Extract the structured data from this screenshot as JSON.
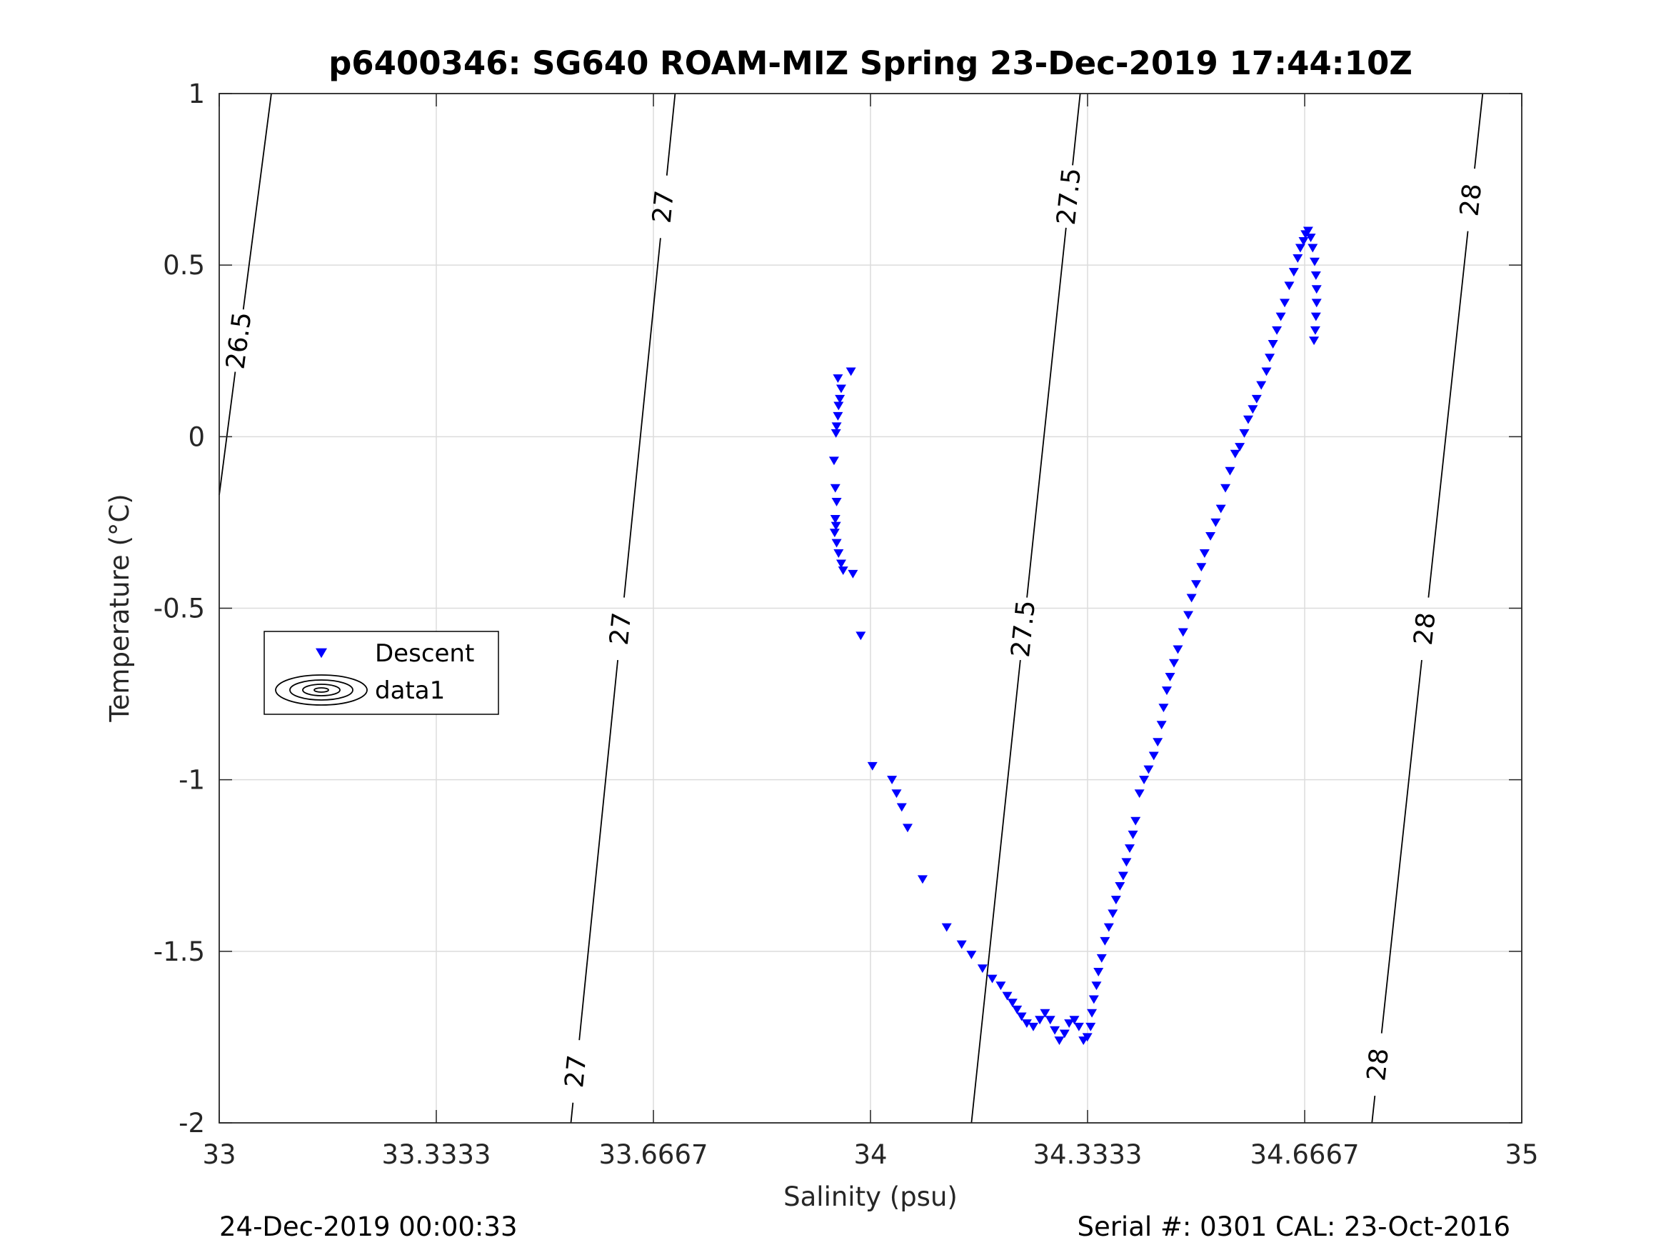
{
  "chart_data": {
    "type": "scatter",
    "title": "p6400346: SG640 ROAM-MIZ Spring 23-Dec-2019 17:44:10Z",
    "xlabel": "Salinity (psu)",
    "ylabel": "Temperature (°C)",
    "xlim": [
      33,
      35
    ],
    "ylim": [
      -2,
      1
    ],
    "x_ticks": [
      "33",
      "33.3333",
      "33.6667",
      "34",
      "34.3333",
      "34.6667",
      "35"
    ],
    "y_ticks": [
      "1",
      "0.5",
      "0",
      "-0.5",
      "-1",
      "-1.5",
      "-2"
    ],
    "grid": true,
    "legend_position": "middle-left",
    "colors": {
      "descent": "#0000ff",
      "contour": "#000000",
      "grid": "#dcdcdc"
    },
    "series": [
      {
        "name": "Descent",
        "marker": "down-triangle",
        "points": [
          [
            33.97,
            0.19
          ],
          [
            33.95,
            0.17
          ],
          [
            33.955,
            0.14
          ],
          [
            33.953,
            0.11
          ],
          [
            33.951,
            0.09
          ],
          [
            33.95,
            0.06
          ],
          [
            33.948,
            0.03
          ],
          [
            33.947,
            0.01
          ],
          [
            33.944,
            -0.07
          ],
          [
            33.946,
            -0.15
          ],
          [
            33.948,
            -0.19
          ],
          [
            33.946,
            -0.24
          ],
          [
            33.947,
            -0.26
          ],
          [
            33.945,
            -0.28
          ],
          [
            33.948,
            -0.31
          ],
          [
            33.951,
            -0.34
          ],
          [
            33.955,
            -0.37
          ],
          [
            33.958,
            -0.39
          ],
          [
            33.973,
            -0.4
          ],
          [
            33.985,
            -0.58
          ],
          [
            34.003,
            -0.96
          ],
          [
            34.033,
            -1.0
          ],
          [
            34.04,
            -1.04
          ],
          [
            34.048,
            -1.08
          ],
          [
            34.057,
            -1.14
          ],
          [
            34.08,
            -1.29
          ],
          [
            34.117,
            -1.43
          ],
          [
            34.14,
            -1.48
          ],
          [
            34.155,
            -1.51
          ],
          [
            34.172,
            -1.55
          ],
          [
            34.187,
            -1.58
          ],
          [
            34.2,
            -1.6
          ],
          [
            34.21,
            -1.63
          ],
          [
            34.218,
            -1.65
          ],
          [
            34.225,
            -1.67
          ],
          [
            34.232,
            -1.69
          ],
          [
            34.24,
            -1.71
          ],
          [
            34.25,
            -1.72
          ],
          [
            34.26,
            -1.7
          ],
          [
            34.268,
            -1.68
          ],
          [
            34.276,
            -1.7
          ],
          [
            34.283,
            -1.73
          ],
          [
            34.29,
            -1.76
          ],
          [
            34.298,
            -1.74
          ],
          [
            34.305,
            -1.71
          ],
          [
            34.313,
            -1.7
          ],
          [
            34.32,
            -1.72
          ],
          [
            34.327,
            -1.76
          ],
          [
            34.333,
            -1.75
          ],
          [
            34.338,
            -1.72
          ],
          [
            34.34,
            -1.68
          ],
          [
            34.343,
            -1.64
          ],
          [
            34.347,
            -1.6
          ],
          [
            34.35,
            -1.56
          ],
          [
            34.355,
            -1.52
          ],
          [
            34.36,
            -1.47
          ],
          [
            34.366,
            -1.43
          ],
          [
            34.372,
            -1.39
          ],
          [
            34.377,
            -1.35
          ],
          [
            34.383,
            -1.31
          ],
          [
            34.388,
            -1.28
          ],
          [
            34.393,
            -1.24
          ],
          [
            34.398,
            -1.2
          ],
          [
            34.403,
            -1.16
          ],
          [
            34.407,
            -1.12
          ],
          [
            34.413,
            -1.04
          ],
          [
            34.42,
            -1.0
          ],
          [
            34.427,
            -0.97
          ],
          [
            34.435,
            -0.93
          ],
          [
            34.441,
            -0.89
          ],
          [
            34.447,
            -0.84
          ],
          [
            34.45,
            -0.79
          ],
          [
            34.455,
            -0.74
          ],
          [
            34.46,
            -0.7
          ],
          [
            34.466,
            -0.66
          ],
          [
            34.472,
            -0.62
          ],
          [
            34.48,
            -0.57
          ],
          [
            34.488,
            -0.52
          ],
          [
            34.493,
            -0.47
          ],
          [
            34.5,
            -0.43
          ],
          [
            34.508,
            -0.38
          ],
          [
            34.513,
            -0.34
          ],
          [
            34.522,
            -0.29
          ],
          [
            34.53,
            -0.25
          ],
          [
            34.538,
            -0.21
          ],
          [
            34.545,
            -0.15
          ],
          [
            34.552,
            -0.1
          ],
          [
            34.56,
            -0.05
          ],
          [
            34.567,
            -0.03
          ],
          [
            34.574,
            0.01
          ],
          [
            34.58,
            0.05
          ],
          [
            34.587,
            0.08
          ],
          [
            34.593,
            0.11
          ],
          [
            34.6,
            0.15
          ],
          [
            34.608,
            0.19
          ],
          [
            34.613,
            0.23
          ],
          [
            34.618,
            0.27
          ],
          [
            34.624,
            0.31
          ],
          [
            34.63,
            0.35
          ],
          [
            34.636,
            0.39
          ],
          [
            34.643,
            0.44
          ],
          [
            34.65,
            0.48
          ],
          [
            34.656,
            0.52
          ],
          [
            34.66,
            0.55
          ],
          [
            34.665,
            0.57
          ],
          [
            34.668,
            0.59
          ],
          [
            34.672,
            0.6
          ],
          [
            34.676,
            0.58
          ],
          [
            34.679,
            0.55
          ],
          [
            34.682,
            0.51
          ],
          [
            34.684,
            0.47
          ],
          [
            34.685,
            0.43
          ],
          [
            34.685,
            0.39
          ],
          [
            34.684,
            0.35
          ],
          [
            34.683,
            0.31
          ],
          [
            34.681,
            0.28
          ]
        ]
      }
    ],
    "contours": {
      "name": "data1",
      "levels": [
        {
          "level": 26.5,
          "label": "26.5",
          "points": [
            [
              33.0,
              -0.17
            ],
            [
              33.08,
              1.0
            ]
          ],
          "label_positions": [
            0.28
          ]
        },
        {
          "level": 27.0,
          "label": "27",
          "points": [
            [
              33.54,
              -2.0
            ],
            [
              33.7,
              1.0
            ]
          ],
          "label_positions": [
            -1.85,
            -0.56,
            0.67
          ]
        },
        {
          "level": 27.5,
          "label": "27.5",
          "points": [
            [
              34.155,
              -2.0
            ],
            [
              34.322,
              1.0
            ]
          ],
          "label_positions": [
            -0.56,
            0.7
          ]
        },
        {
          "level": 28.0,
          "label": "28",
          "points": [
            [
              34.77,
              -2.0
            ],
            [
              34.94,
              1.0
            ]
          ],
          "label_positions": [
            -1.83,
            -0.56,
            0.69
          ]
        }
      ]
    },
    "legend": [
      {
        "label": "Descent",
        "symbol": "down-triangle"
      },
      {
        "label": "data1",
        "symbol": "contour-ellipses"
      }
    ],
    "footer_left": "24-Dec-2019 00:00:33",
    "footer_right": "Serial #: 0301  CAL: 23-Oct-2016"
  }
}
